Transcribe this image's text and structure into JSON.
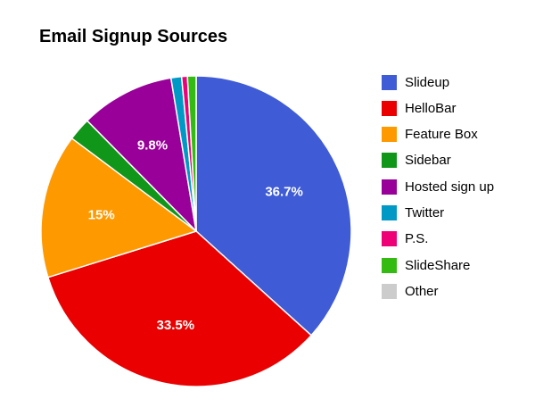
{
  "chart_data": {
    "type": "pie",
    "title": "Email Signup Sources",
    "legend_position": "right",
    "slices": [
      {
        "name": "Slideup",
        "value": 36.7,
        "label": "36.7%",
        "color": "#3f5bd5"
      },
      {
        "name": "HelloBar",
        "value": 33.5,
        "label": "33.5%",
        "color": "#ea0000"
      },
      {
        "name": "Feature Box",
        "value": 15.0,
        "label": "15%",
        "color": "#ff9900"
      },
      {
        "name": "Sidebar",
        "value": 2.4,
        "label": "",
        "color": "#109618"
      },
      {
        "name": "Hosted sign up",
        "value": 9.8,
        "label": "9.8%",
        "color": "#990099"
      },
      {
        "name": "Twitter",
        "value": 1.1,
        "label": "",
        "color": "#0099c6"
      },
      {
        "name": "P.S.",
        "value": 0.6,
        "label": "",
        "color": "#ee0077"
      },
      {
        "name": "SlideShare",
        "value": 0.9,
        "label": "",
        "color": "#33bb11"
      },
      {
        "name": "Other",
        "value": 0.0,
        "label": "",
        "color": "#cccccc"
      }
    ]
  }
}
